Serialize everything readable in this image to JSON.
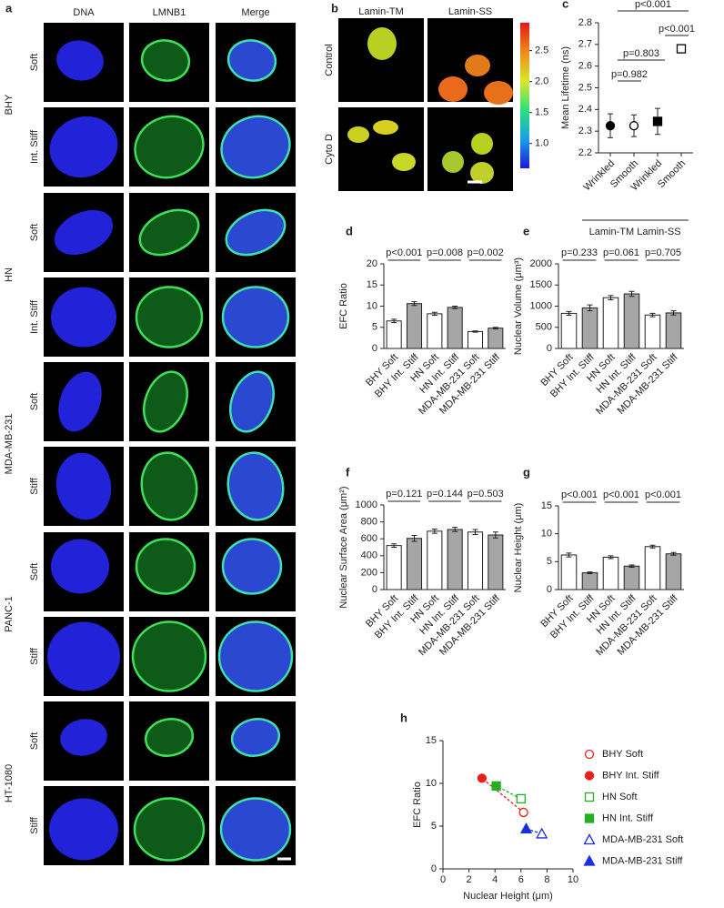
{
  "panel_a": {
    "label": "a",
    "columns": [
      "DNA",
      "LMNB1",
      "Merge"
    ],
    "column_colors": [
      "#2a2ae6",
      "#1fae3a",
      "#222222"
    ],
    "rows": [
      {
        "cell_line": "BHY",
        "conditions": [
          "Soft",
          "Int. Stiff"
        ]
      },
      {
        "cell_line": "HN",
        "conditions": [
          "Soft",
          "Int. Stiff"
        ]
      },
      {
        "cell_line": "MDA-MB-231",
        "conditions": [
          "Soft",
          "Stiff"
        ]
      },
      {
        "cell_line": "PANC-1",
        "conditions": [
          "Soft",
          "Stiff"
        ]
      },
      {
        "cell_line": "HT-1080",
        "conditions": [
          "Soft",
          "Stiff"
        ]
      }
    ]
  },
  "panel_b": {
    "label": "b",
    "columns": [
      "Lamin-TM",
      "Lamin-SS"
    ],
    "rows": [
      "Control",
      "Cyto D"
    ],
    "colorbar": {
      "range": [
        0.6,
        2.95
      ],
      "ticks": [
        {
          "value": 1,
          "label": "1.0"
        },
        1.5,
        {
          "value": 2,
          "label": "2.0"
        },
        2.5
      ]
    }
  },
  "chart_data": [
    {
      "type": "dot",
      "label": "c",
      "y_label": "Mean Lifetime (ns)",
      "categories": [
        "Wrinkled",
        "Smooth",
        "Wrinkled",
        "Smooth"
      ],
      "group_labels": [
        "Lamin-TM",
        "Lamin-SS"
      ],
      "values": [
        2.325,
        2.325,
        2.345,
        2.68
      ],
      "errors": [
        0.055,
        0.05,
        0.06,
        0.015
      ],
      "markers": [
        "circle-filled",
        "circle-open",
        "square-filled",
        "square-open"
      ],
      "color": "#000000",
      "ylim": [
        2.2,
        2.8
      ],
      "yticks": [
        2.2,
        2.3,
        2.4,
        2.5,
        2.6,
        2.7,
        2.8
      ],
      "annotations": [
        "p<0.001",
        "p<0.001",
        "p=0.803",
        "p=0.982"
      ]
    },
    {
      "type": "bar",
      "label": "d",
      "y_label": "EFC Ratio",
      "categories": [
        "BHY Soft",
        "BHY Int. Stiff",
        "HN Soft",
        "HN Int. Stiff",
        "MDA-MB-231 Soft",
        "MDA-MB-231 Stiff"
      ],
      "values": [
        6.5,
        10.6,
        8.2,
        9.7,
        4.0,
        4.8
      ],
      "errors": [
        0.4,
        0.45,
        0.35,
        0.3,
        0.15,
        0.2
      ],
      "colors": [
        "#ffffff",
        "#a6a6a6",
        "#ffffff",
        "#a6a6a6",
        "#ffffff",
        "#a6a6a6"
      ],
      "ylim": [
        0,
        20
      ],
      "yticks": [
        0,
        5,
        10,
        15,
        20
      ],
      "annotations": [
        "p<0.001",
        "p=0.008",
        "p=0.002"
      ]
    },
    {
      "type": "bar",
      "label": "e",
      "y_label": "Nuclear Volume (μm³)",
      "categories": [
        "BHY Soft",
        "BHY Int. Stiff",
        "HN Soft",
        "HN Int. Stiff",
        "MDA-MB-231 Soft",
        "MDA-MB-231 Stiff"
      ],
      "values": [
        830,
        960,
        1200,
        1290,
        790,
        840
      ],
      "errors": [
        45,
        70,
        50,
        60,
        40,
        50
      ],
      "colors": [
        "#ffffff",
        "#a6a6a6",
        "#ffffff",
        "#a6a6a6",
        "#ffffff",
        "#a6a6a6"
      ],
      "ylim": [
        0,
        2000
      ],
      "yticks": [
        0,
        500,
        1000,
        1500,
        2000
      ],
      "annotations": [
        "p=0.233",
        "p=0.061",
        "p=0.705"
      ]
    },
    {
      "type": "bar",
      "label": "f",
      "y_label": "Nuclear Surface Area (μm²)",
      "categories": [
        "BHY Soft",
        "BHY Int. Stiff",
        "HN Soft",
        "HN Int. Stiff",
        "MDA-MB-231 Soft",
        "MDA-MB-231 Stiff"
      ],
      "values": [
        520,
        605,
        690,
        710,
        680,
        645
      ],
      "errors": [
        20,
        35,
        25,
        25,
        30,
        35
      ],
      "colors": [
        "#ffffff",
        "#a6a6a6",
        "#ffffff",
        "#a6a6a6",
        "#ffffff",
        "#a6a6a6"
      ],
      "ylim": [
        0,
        1000
      ],
      "yticks": [
        0,
        200,
        400,
        600,
        800,
        1000
      ],
      "annotations": [
        "p=0.121",
        "p=0.144",
        "p=0.503"
      ]
    },
    {
      "type": "bar",
      "label": "g",
      "y_label": "Nuclear Height (μm)",
      "categories": [
        "BHY Soft",
        "BHY Int. Stiff",
        "HN Soft",
        "HN Int. Stiff",
        "MDA-MB-231 Soft",
        "MDA-MB-231 Stiff"
      ],
      "values": [
        6.2,
        3.0,
        5.8,
        4.2,
        7.7,
        6.4
      ],
      "errors": [
        0.35,
        0.15,
        0.25,
        0.2,
        0.25,
        0.25
      ],
      "colors": [
        "#ffffff",
        "#a6a6a6",
        "#ffffff",
        "#a6a6a6",
        "#ffffff",
        "#a6a6a6"
      ],
      "ylim": [
        0,
        15
      ],
      "yticks": [
        0,
        5,
        10,
        15
      ],
      "annotations": [
        "p<0.001",
        "p<0.001",
        "p<0.001"
      ]
    },
    {
      "type": "scatter",
      "label": "h",
      "x_label": "Nuclear Height (μm)",
      "y_label": "EFC Ratio",
      "xlim": [
        0,
        10
      ],
      "xticks": [
        0,
        2,
        4,
        6,
        8,
        10
      ],
      "ylim": [
        0,
        15
      ],
      "yticks": [
        0,
        5,
        10,
        15
      ],
      "series": [
        {
          "name": "BHY Soft",
          "color": "#e8201c",
          "marker": "circle-open",
          "x": 6.2,
          "y": 6.6,
          "xerr": 0.3,
          "yerr": 0.35
        },
        {
          "name": "BHY Int. Stiff",
          "color": "#e8201c",
          "marker": "circle-filled",
          "x": 3.0,
          "y": 10.6,
          "xerr": 0.15,
          "yerr": 0.45
        },
        {
          "name": "HN Soft",
          "color": "#22b022",
          "marker": "square-open",
          "x": 6.0,
          "y": 8.2,
          "xerr": 0.25,
          "yerr": 0.35
        },
        {
          "name": "HN Int. Stiff",
          "color": "#22b022",
          "marker": "square-filled",
          "x": 4.1,
          "y": 9.7,
          "xerr": 0.2,
          "yerr": 0.3
        },
        {
          "name": "MDA-MB-231 Soft",
          "color": "#1a2ee0",
          "marker": "triangle-open",
          "x": 7.6,
          "y": 4.1,
          "xerr": 0.25,
          "yerr": 0.15
        },
        {
          "name": "MDA-MB-231 Stiff",
          "color": "#1a2ee0",
          "marker": "triangle-filled",
          "x": 6.4,
          "y": 4.7,
          "xerr": 0.25,
          "yerr": 0.2
        }
      ]
    }
  ]
}
